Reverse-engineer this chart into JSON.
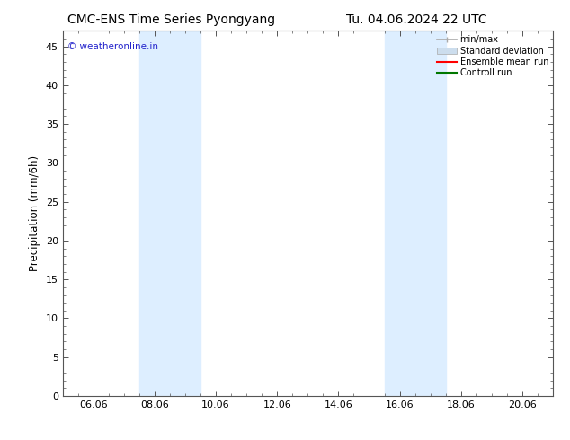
{
  "title": "CMC-ENS Time Series Pyongyang",
  "title_right": "Tu. 04.06.2024 22 UTC",
  "ylabel": "Precipitation (mm/6h)",
  "background_color": "#ffffff",
  "plot_bg_color": "#ffffff",
  "ylim": [
    0,
    47
  ],
  "yticks": [
    0,
    5,
    10,
    15,
    20,
    25,
    30,
    35,
    40,
    45
  ],
  "xtick_labels": [
    "06.06",
    "08.06",
    "10.06",
    "12.06",
    "14.06",
    "16.06",
    "18.06",
    "20.06"
  ],
  "xtick_positions": [
    1.0,
    3.0,
    5.0,
    7.0,
    9.0,
    11.0,
    13.0,
    15.0
  ],
  "xlim": [
    0,
    16
  ],
  "shaded_bands": [
    {
      "xmin": 2.5,
      "xmax": 4.5,
      "color": "#ddeeff"
    },
    {
      "xmin": 10.5,
      "xmax": 12.5,
      "color": "#ddeeff"
    }
  ],
  "watermark_text": "© weatheronline.in",
  "watermark_color": "#2222cc",
  "legend_items": [
    {
      "label": "min/max",
      "color": "#aaaaaa",
      "lw": 1.2,
      "style": "minmax"
    },
    {
      "label": "Standard deviation",
      "color": "#ccdded",
      "lw": 6,
      "style": "fill"
    },
    {
      "label": "Ensemble mean run",
      "color": "#ff0000",
      "lw": 1.5,
      "style": "line"
    },
    {
      "label": "Controll run",
      "color": "#007700",
      "lw": 1.5,
      "style": "line"
    }
  ],
  "title_fontsize": 10,
  "tick_fontsize": 8,
  "label_fontsize": 8.5,
  "watermark_fontsize": 7.5
}
